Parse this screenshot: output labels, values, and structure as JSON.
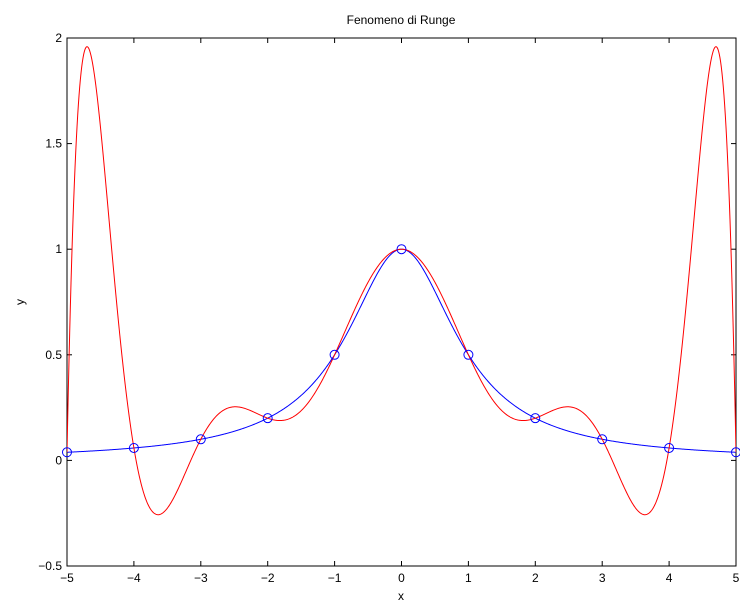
{
  "chart_data": {
    "type": "line",
    "title": "Fenomeno di Runge",
    "xlabel": "x",
    "ylabel": "y",
    "xlim": [
      -5,
      5
    ],
    "ylim": [
      -0.5,
      2
    ],
    "xticks": [
      -5,
      -4,
      -3,
      -2,
      -1,
      0,
      1,
      2,
      3,
      4,
      5
    ],
    "xtick_labels": [
      "−5",
      "−4",
      "−3",
      "−2",
      "−1",
      "0",
      "1",
      "2",
      "3",
      "4",
      "5"
    ],
    "yticks": [
      -0.5,
      0,
      0.5,
      1,
      1.5,
      2
    ],
    "ytick_labels": [
      "−0.5",
      "0",
      "0.5",
      "1",
      "1.5",
      "2"
    ],
    "grid": false,
    "legend": "none",
    "series": [
      {
        "function": "1/(1+x^2)",
        "color": "#0000ff",
        "style": "line"
      },
      {
        "function": "degree-10 interpolating polynomial of 1/(1+x^2) at nodes x = -5..5",
        "color": "#ff0000",
        "style": "line"
      },
      {
        "color": "#0000ff",
        "style": "markers",
        "marker": "circle",
        "x": [
          -5,
          -4,
          -3,
          -2,
          -1,
          0,
          1,
          2,
          3,
          4,
          5
        ],
        "y": [
          0.0385,
          0.0588,
          0.1,
          0.2,
          0.5,
          1,
          0.5,
          0.2,
          0.1,
          0.0588,
          0.0385
        ]
      }
    ]
  }
}
